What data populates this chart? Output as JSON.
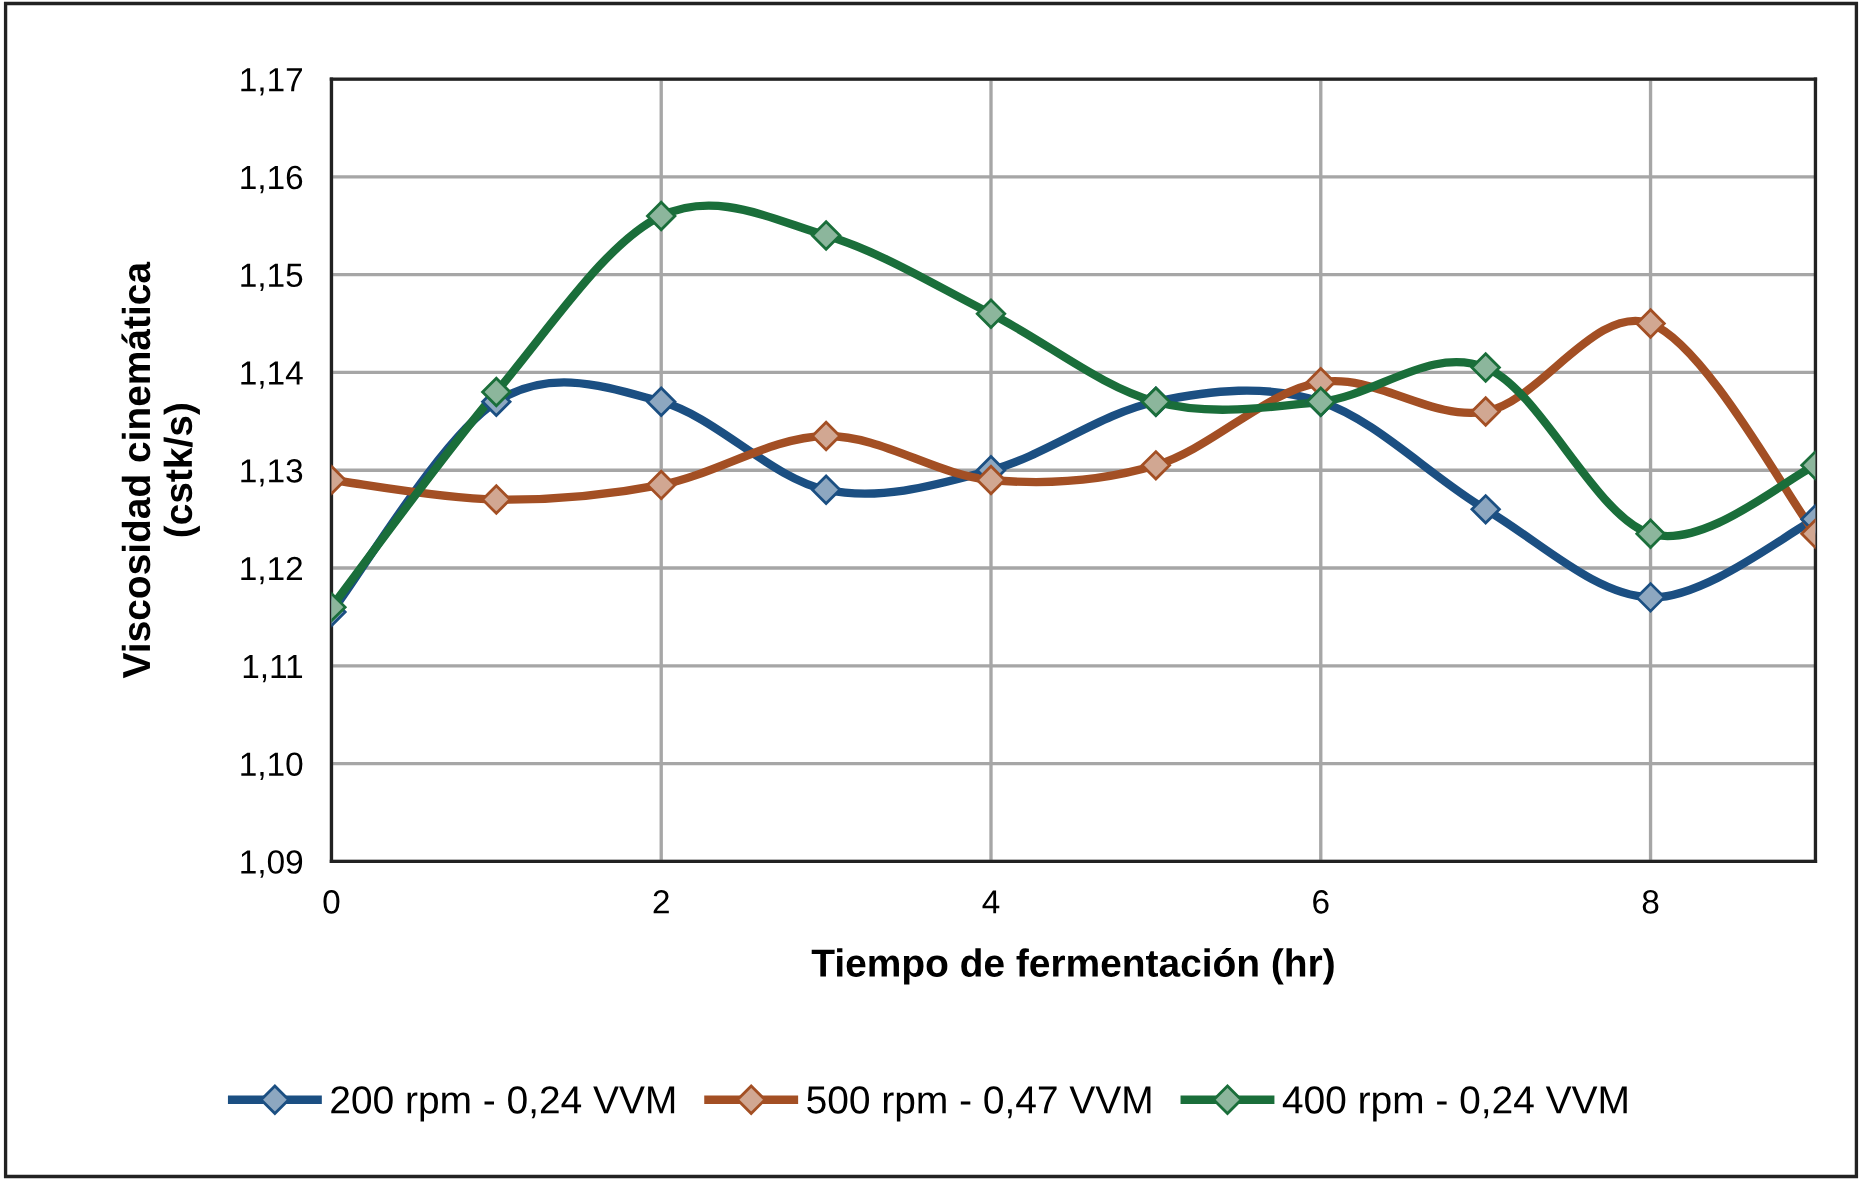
{
  "chart_data": {
    "type": "line",
    "xlabel": "Tiempo de fermentación (hr)",
    "ylabel": "Viscosidad cinemática\n(cstk/s)",
    "x": [
      0,
      1,
      2,
      3,
      4,
      5,
      6,
      7,
      8,
      9
    ],
    "xlim": [
      0,
      9
    ],
    "xticks": [
      0,
      2,
      4,
      6,
      8
    ],
    "ylim": [
      1.09,
      1.17
    ],
    "yticks": [
      {
        "value": 1.09,
        "label": "1,09"
      },
      {
        "value": 1.1,
        "label": "1,10"
      },
      {
        "value": 1.11,
        "label": "1,11"
      },
      {
        "value": 1.12,
        "label": "1,12"
      },
      {
        "value": 1.13,
        "label": "1,13"
      },
      {
        "value": 1.14,
        "label": "1,14"
      },
      {
        "value": 1.15,
        "label": "1,15"
      },
      {
        "value": 1.16,
        "label": "1,16"
      },
      {
        "value": 1.17,
        "label": "1,17"
      }
    ],
    "grid": true,
    "legend": "bottom",
    "marker": "diamond",
    "line_style": "solid",
    "series": [
      {
        "name": "200 rpm - 0,24 VVM",
        "color": "#1b4f82",
        "values": [
          1.1155,
          1.137,
          1.137,
          1.128,
          1.13,
          1.137,
          1.137,
          1.126,
          1.117,
          1.125
        ]
      },
      {
        "name": "500 rpm - 0,47 VVM",
        "color": "#a34f24",
        "values": [
          1.129,
          1.127,
          1.1285,
          1.1335,
          1.129,
          1.1305,
          1.139,
          1.136,
          1.145,
          1.1235
        ]
      },
      {
        "name": "400 rpm - 0,24 VVM",
        "color": "#1a6e3a",
        "values": [
          1.116,
          1.138,
          1.156,
          1.154,
          1.146,
          1.137,
          1.137,
          1.1405,
          1.1235,
          1.1305
        ]
      }
    ]
  }
}
